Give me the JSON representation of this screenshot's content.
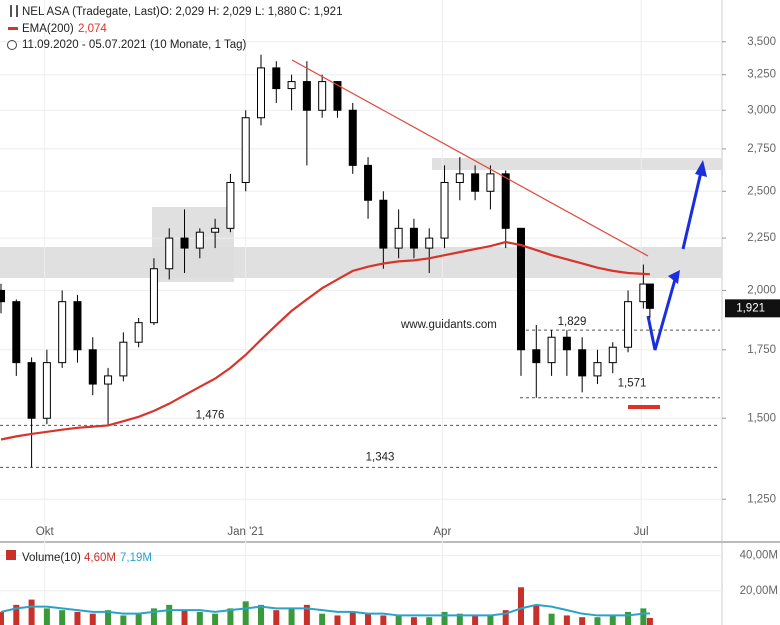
{
  "chart_data": [
    {
      "type": "candlestick",
      "title": "NEL ASA (Tradegate, Last)",
      "ohlc_labels": [
        "O: 2,029",
        "H: 2,029",
        "L: 1,880",
        "C: 1,921"
      ],
      "range_label": "11.09.2020 - 05.07.2021",
      "period_label": "(10 Monate, 1 Tag)",
      "x": [
        "11.09.2020",
        "18.09.2020",
        "25.09.2020",
        "02.10.2020",
        "09.10.2020",
        "16.10.2020",
        "23.10.2020",
        "30.10.2020",
        "06.11.2020",
        "13.11.2020",
        "20.11.2020",
        "27.11.2020",
        "04.12.2020",
        "11.12.2020",
        "18.12.2020",
        "25.12.2020",
        "01.01.2021",
        "08.01.2021",
        "15.01.2021",
        "22.01.2021",
        "29.01.2021",
        "05.02.2021",
        "12.02.2021",
        "19.02.2021",
        "26.02.2021",
        "05.03.2021",
        "12.03.2021",
        "19.03.2021",
        "26.03.2021",
        "02.04.2021",
        "09.04.2021",
        "16.04.2021",
        "23.04.2021",
        "30.04.2021",
        "07.05.2021",
        "14.05.2021",
        "21.05.2021",
        "28.05.2021",
        "04.06.2021",
        "11.06.2021",
        "18.06.2021",
        "25.06.2021",
        "02.07.2021",
        "05.07.2021"
      ],
      "open": [
        2000,
        1950,
        1700,
        1500,
        1700,
        1950,
        1750,
        1620,
        1650,
        1780,
        1860,
        2100,
        2250,
        2200,
        2280,
        2300,
        2550,
        2950,
        3300,
        3150,
        3200,
        3000,
        3200,
        3000,
        2650,
        2450,
        2200,
        2300,
        2200,
        2250,
        2550,
        2600,
        2500,
        2600,
        2300,
        1750,
        1700,
        1800,
        1750,
        1650,
        1700,
        1760,
        1950,
        2029
      ],
      "high": [
        2030,
        1960,
        1720,
        1750,
        2000,
        1980,
        1800,
        1680,
        1820,
        1880,
        2150,
        2300,
        2400,
        2300,
        2350,
        2600,
        3000,
        3400,
        3350,
        3250,
        3350,
        3250,
        3200,
        3050,
        2700,
        2500,
        2400,
        2350,
        2300,
        2650,
        2700,
        2650,
        2650,
        2620,
        2300,
        1850,
        1829,
        1829,
        1800,
        1750,
        1780,
        2000,
        2120,
        2029
      ],
      "low": [
        1900,
        1650,
        1343,
        1480,
        1680,
        1700,
        1580,
        1476,
        1630,
        1760,
        1850,
        2050,
        2080,
        2150,
        2200,
        2280,
        2500,
        2900,
        3050,
        3000,
        2650,
        2950,
        2950,
        2600,
        2350,
        2100,
        2150,
        2150,
        2080,
        2200,
        2450,
        2450,
        2400,
        2200,
        1650,
        1571,
        1650,
        1650,
        1590,
        1620,
        1660,
        1740,
        1920,
        1880
      ],
      "close": [
        1950,
        1700,
        1500,
        1700,
        1950,
        1750,
        1620,
        1650,
        1780,
        1860,
        2100,
        2250,
        2200,
        2280,
        2300,
        2550,
        2950,
        3300,
        3150,
        3200,
        3000,
        3200,
        3000,
        2650,
        2450,
        2200,
        2300,
        2200,
        2250,
        2550,
        2600,
        2500,
        2600,
        2300,
        1750,
        1700,
        1800,
        1750,
        1650,
        1700,
        1760,
        1950,
        2029,
        1921
      ],
      "up_color": "#ffffff",
      "down_color": "#000000",
      "overlays": [
        {
          "name": "EMA(200)",
          "color": "#d9342b",
          "value_label": "2,074",
          "values": [
            1430,
            1440,
            1448,
            1455,
            1462,
            1468,
            1472,
            1476,
            1490,
            1505,
            1525,
            1550,
            1580,
            1610,
            1640,
            1680,
            1730,
            1790,
            1850,
            1910,
            1960,
            2010,
            2050,
            2090,
            2110,
            2125,
            2135,
            2140,
            2150,
            2165,
            2180,
            2195,
            2210,
            2230,
            2215,
            2190,
            2165,
            2145,
            2125,
            2105,
            2090,
            2080,
            2076,
            2074
          ]
        }
      ],
      "last_price": {
        "value": 1921,
        "label": "1,921"
      },
      "levels": [
        {
          "value": 1476,
          "label": "1,476"
        },
        {
          "value": 1343,
          "label": "1,343"
        },
        {
          "value": 1829,
          "label": "1,829"
        },
        {
          "value": 1571,
          "label": "1,571"
        }
      ],
      "watermark": "www.guidants.com",
      "log_scale": true,
      "grid": true,
      "xlim": [
        "11.09.2020",
        "07.08.2021"
      ],
      "xticks": [
        {
          "value": "01.10.2020",
          "label": "Okt"
        },
        {
          "value": "01.01.2021",
          "label": "Jan '21"
        },
        {
          "value": "01.04.2021",
          "label": "Apr"
        },
        {
          "value": "01.07.2021",
          "label": "Jul"
        }
      ],
      "ylim": [
        1193,
        3845
      ],
      "yticks": [
        {
          "value": 1250,
          "label": "1,250"
        },
        {
          "value": 1500,
          "label": "1,500"
        },
        {
          "value": 1750,
          "label": "1,750"
        },
        {
          "value": 2000,
          "label": "2,000"
        },
        {
          "value": 2250,
          "label": "2,250"
        },
        {
          "value": 2500,
          "label": "2,500"
        },
        {
          "value": 2750,
          "label": "2,750"
        },
        {
          "value": 3000,
          "label": "3,000"
        },
        {
          "value": 3250,
          "label": "3,250"
        },
        {
          "value": 3500,
          "label": "3,500"
        }
      ]
    },
    {
      "type": "bar",
      "title": "Volume(10)",
      "values": [
        8,
        12,
        15,
        10,
        9,
        8,
        7,
        9,
        6,
        7,
        10,
        12,
        9,
        8,
        7,
        10,
        14,
        12,
        9,
        10,
        12,
        7,
        6,
        8,
        7,
        6,
        6,
        5,
        5,
        8,
        7,
        6,
        6,
        9,
        22,
        12,
        7,
        6,
        5,
        5,
        6,
        8,
        10,
        4.6
      ],
      "value_label": "4,60M",
      "average": {
        "color": "#2aa3c9",
        "value_label": "7,19M",
        "values": [
          8,
          10,
          11,
          11,
          10,
          9,
          8,
          8,
          7,
          7,
          8,
          9,
          9,
          9,
          8,
          9,
          10,
          11,
          10,
          10,
          10,
          9,
          8,
          8,
          7,
          7,
          6,
          6,
          6,
          6,
          6,
          6,
          6,
          7,
          10,
          12,
          11,
          9,
          7,
          6,
          6,
          6,
          7,
          7.19
        ]
      },
      "up_color": "#3a9a3a",
      "down_color": "#c8302a",
      "ylim": [
        0,
        46
      ],
      "yticks": [
        {
          "value": 20,
          "label": "20,00M"
        },
        {
          "value": 40,
          "label": "40,00M"
        }
      ]
    }
  ]
}
